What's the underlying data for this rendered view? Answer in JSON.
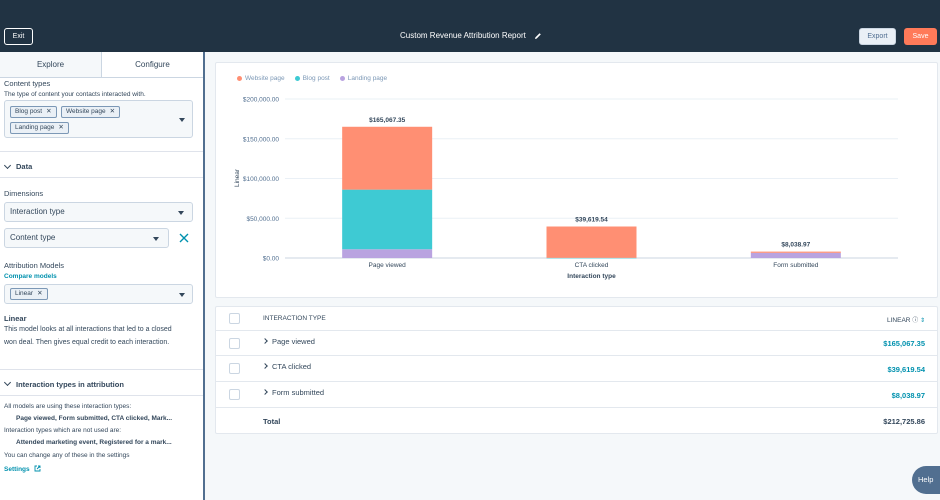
{
  "topbar": {
    "exit_label": "Exit",
    "title": "Custom Revenue Attribution Report",
    "export_label": "Export",
    "save_label": "Save"
  },
  "left": {
    "tabs": [
      "Explore",
      "Configure"
    ],
    "content_types": {
      "title": "Content types",
      "desc": "The type of content your contacts interacted with.",
      "tags": [
        "Blog post",
        "Website page",
        "Landing page"
      ]
    },
    "data_section": "Data",
    "dimensions_label": "Dimensions",
    "dimension1": "Interaction type",
    "dimension2": "Content type",
    "attribution_models_label": "Attribution Models",
    "compare_models": "Compare models",
    "model_tag": "Linear",
    "model_name": "Linear",
    "model_desc1": "This model looks at all interactions that led to a closed",
    "model_desc2": "won deal. Then gives equal credit to each interaction.",
    "interaction_section": "Interaction types in attribution",
    "all_models_text": "All models are using these interaction types:",
    "used_types": "Page viewed, Form submitted, CTA clicked, Mark...",
    "not_used_text": "Interaction types which are not used are:",
    "not_used_types": "Attended marketing event, Registered for a mark...",
    "settings_note": "You can change any of these in the settings",
    "settings_link": "Settings"
  },
  "chart_data": {
    "type": "bar",
    "stacked": true,
    "categories": [
      "Page viewed",
      "CTA clicked",
      "Form submitted"
    ],
    "series": [
      {
        "name": "Website page",
        "color": "#ff8f73",
        "values": [
          79067.35,
          39419.54,
          1538.97
        ]
      },
      {
        "name": "Blog post",
        "color": "#3ecad3",
        "values": [
          75000,
          200,
          0
        ]
      },
      {
        "name": "Landing page",
        "color": "#b9a3e0",
        "values": [
          11000,
          0,
          6500
        ]
      }
    ],
    "totals": [
      "$165,067.35",
      "$39,619.54",
      "$8,038.97"
    ],
    "y_ticks": [
      "$0.00",
      "$50,000.00",
      "$100,000.00",
      "$150,000.00",
      "$200,000.00"
    ],
    "ylim": [
      0,
      200000
    ],
    "xlabel": "Interaction type",
    "ylabel": "Linear",
    "legend_position": "top-left",
    "grid": true
  },
  "table": {
    "header_col1": "INTERACTION TYPE",
    "header_col2": "LINEAR",
    "rows": [
      {
        "label": "Page viewed",
        "value": "$165,067.35"
      },
      {
        "label": "CTA clicked",
        "value": "$39,619.54"
      },
      {
        "label": "Form submitted",
        "value": "$8,038.97"
      }
    ],
    "total_label": "Total",
    "total_value": "$212,725.86"
  },
  "help_label": "Help"
}
